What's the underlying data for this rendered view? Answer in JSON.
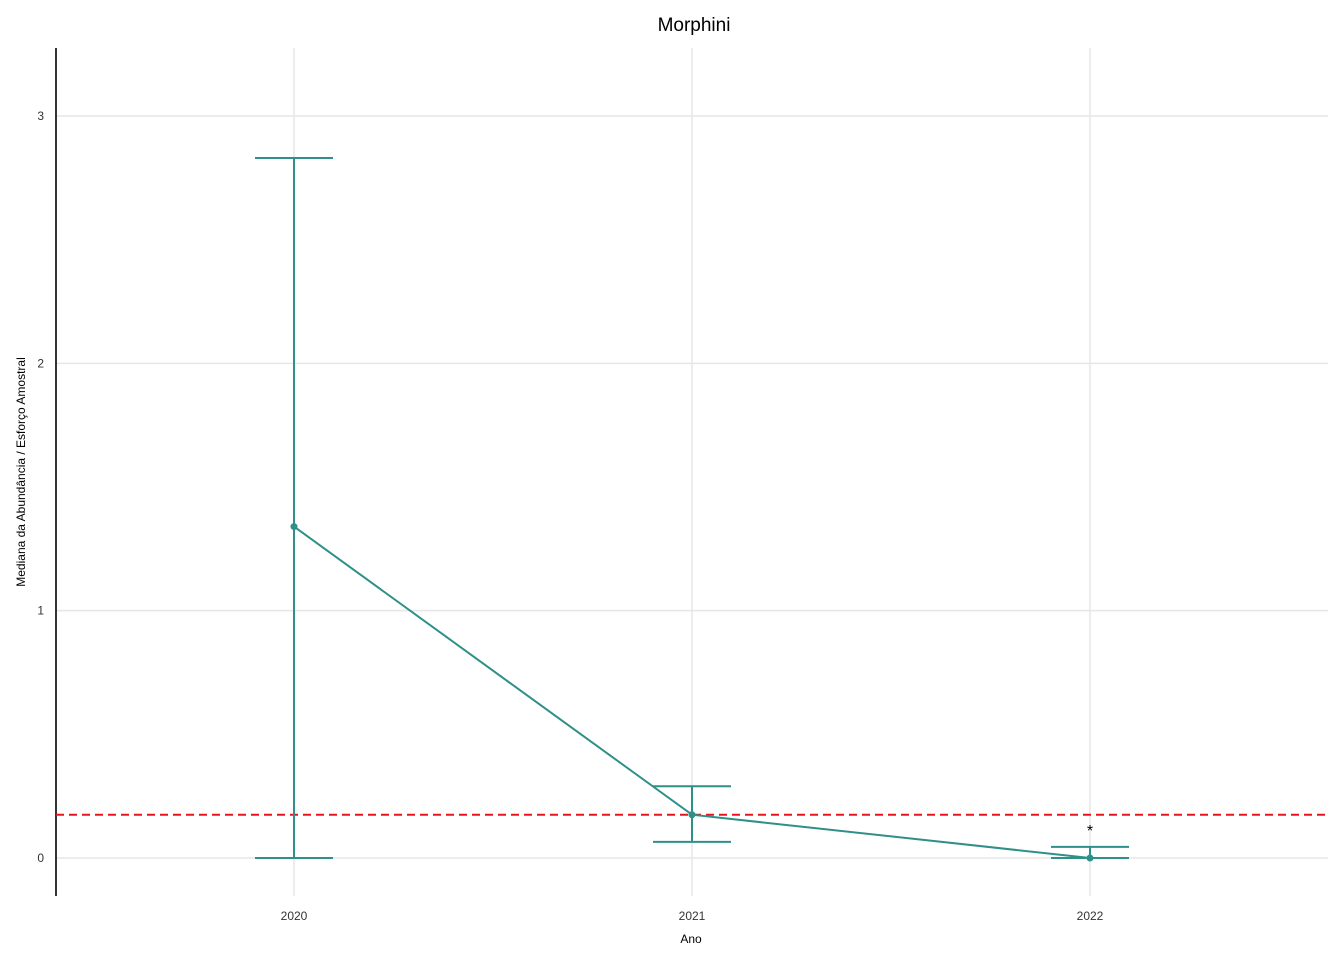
{
  "chart_data": {
    "type": "line",
    "title": "Morphini",
    "xlabel": "Ano",
    "ylabel": "Mediana da Abundância / Esforço Amostral",
    "categories": [
      "2020",
      "2021",
      "2022"
    ],
    "y_ticks": [
      0,
      1,
      2,
      3
    ],
    "ylim": [
      -0.15,
      3.27
    ],
    "grid": true,
    "series": [
      {
        "values": [
          1.34,
          0.175,
          0.0
        ],
        "lower": [
          0.0,
          0.065,
          0.0
        ],
        "upper": [
          2.83,
          0.29,
          0.045
        ],
        "color": "#2e9088"
      }
    ],
    "reference_line": {
      "y": 0.175,
      "color": "#e8141b",
      "style": "dashed"
    },
    "annotations": [
      {
        "category": "2022",
        "text": "*"
      }
    ]
  }
}
